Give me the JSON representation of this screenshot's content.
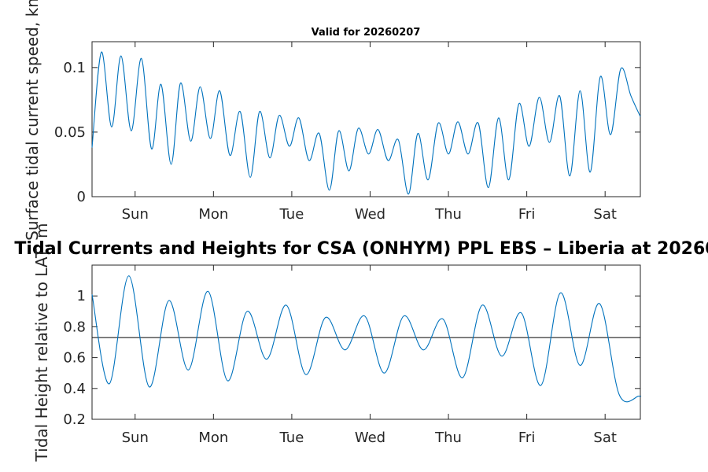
{
  "chart_data": [
    {
      "type": "line",
      "title": "Valid for 20260207",
      "ylabel": "Surface tidal current speed, kn",
      "xlim": [
        0,
        7
      ],
      "ylim": [
        0,
        0.12
      ],
      "yticks": [
        0,
        0.05,
        0.1
      ],
      "ytick_labels": [
        "0",
        "0.05",
        "0.1"
      ],
      "xticks": [
        0.55,
        1.55,
        2.55,
        3.55,
        4.55,
        5.55,
        6.55
      ],
      "xtick_labels": [
        "Sun",
        "Mon",
        "Tue",
        "Wed",
        "Thu",
        "Fri",
        "Sat"
      ],
      "line_color": "#0072BD",
      "series": [
        {
          "x": [
            0,
            0.12,
            0.25,
            0.37,
            0.5,
            0.63,
            0.76,
            0.88,
            1.01,
            1.13,
            1.26,
            1.38,
            1.51,
            1.63,
            1.76,
            1.89,
            2.02,
            2.14,
            2.27,
            2.39,
            2.52,
            2.64,
            2.77,
            2.9,
            3.03,
            3.15,
            3.28,
            3.4,
            3.53,
            3.65,
            3.78,
            3.91,
            4.04,
            4.16,
            4.29,
            4.42,
            4.55,
            4.67,
            4.8,
            4.93,
            5.06,
            5.19,
            5.32,
            5.45,
            5.58,
            5.71,
            5.84,
            5.97,
            6.1,
            6.23,
            6.36,
            6.49,
            6.62,
            6.75,
            6.88,
            7.0
          ],
          "y": [
            0.038,
            0.112,
            0.054,
            0.109,
            0.051,
            0.107,
            0.037,
            0.087,
            0.025,
            0.088,
            0.043,
            0.085,
            0.045,
            0.082,
            0.032,
            0.066,
            0.015,
            0.066,
            0.03,
            0.063,
            0.039,
            0.061,
            0.028,
            0.049,
            0.005,
            0.051,
            0.02,
            0.053,
            0.033,
            0.052,
            0.028,
            0.044,
            0.002,
            0.049,
            0.013,
            0.057,
            0.033,
            0.058,
            0.033,
            0.057,
            0.007,
            0.061,
            0.013,
            0.072,
            0.039,
            0.077,
            0.042,
            0.078,
            0.016,
            0.082,
            0.019,
            0.093,
            0.048,
            0.099,
            0.078,
            0.062
          ]
        }
      ]
    },
    {
      "type": "line",
      "title": "Tidal Currents and Heights for CSA (ONHYM) PPL EBS  – Liberia at 20260",
      "ylabel": "Tidal Height relative to LAT, m",
      "xlim": [
        0,
        7
      ],
      "ylim": [
        0.2,
        1.2
      ],
      "yticks": [
        0.2,
        0.4,
        0.6,
        0.8,
        1.0
      ],
      "ytick_labels": [
        "0.2",
        "0.4",
        "0.6",
        "0.8",
        "1"
      ],
      "xticks": [
        0.55,
        1.55,
        2.55,
        3.55,
        4.55,
        5.55,
        6.55
      ],
      "xtick_labels": [
        "Sun",
        "Mon",
        "Tue",
        "Wed",
        "Thu",
        "Fri",
        "Sat"
      ],
      "line_color": "#0072BD",
      "reference_line": 0.73,
      "reference_line_color": "#000000",
      "series": [
        {
          "x": [
            0,
            0.22,
            0.47,
            0.73,
            0.98,
            1.23,
            1.48,
            1.73,
            1.98,
            2.23,
            2.48,
            2.73,
            2.98,
            3.23,
            3.48,
            3.73,
            3.98,
            4.23,
            4.48,
            4.73,
            4.98,
            5.23,
            5.48,
            5.73,
            5.98,
            6.23,
            6.48,
            6.73,
            6.98,
            7.0
          ],
          "y": [
            1.01,
            0.43,
            1.13,
            0.41,
            0.97,
            0.52,
            1.03,
            0.45,
            0.9,
            0.59,
            0.94,
            0.49,
            0.86,
            0.65,
            0.87,
            0.5,
            0.87,
            0.65,
            0.85,
            0.47,
            0.94,
            0.61,
            0.89,
            0.42,
            1.02,
            0.55,
            0.95,
            0.36,
            0.35,
            0.35
          ]
        }
      ]
    }
  ]
}
